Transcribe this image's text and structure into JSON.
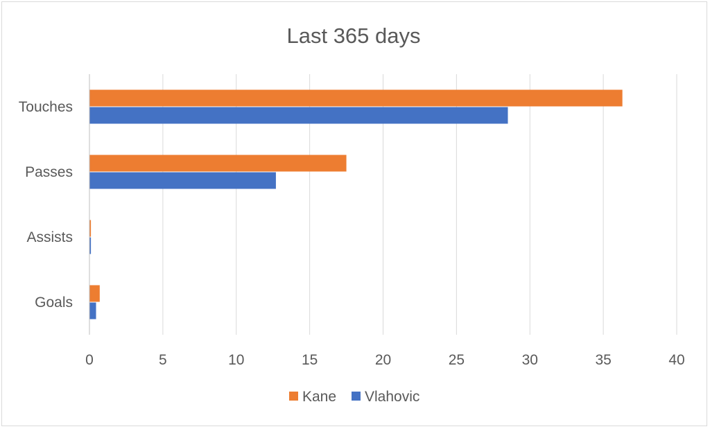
{
  "chart_data": {
    "type": "bar",
    "orientation": "horizontal",
    "title": "Last 365 days",
    "categories": [
      "Goals",
      "Assists",
      "Passes",
      "Touches"
    ],
    "series": [
      {
        "name": "Kane",
        "color": "#ED7D31",
        "values": [
          0.7,
          0.1,
          17.5,
          36.3
        ]
      },
      {
        "name": "Vlahovic",
        "color": "#4472C4",
        "values": [
          0.45,
          0.1,
          12.7,
          28.5
        ]
      }
    ],
    "x_ticks": [
      "0",
      "5",
      "10",
      "15",
      "20",
      "25",
      "30",
      "35",
      "40"
    ],
    "xlim": [
      0,
      40
    ],
    "xlabel": "",
    "ylabel": "",
    "grid": "vertical",
    "legend_position": "bottom",
    "colors": {
      "gridline": "#D9D9D9",
      "axis_line": "#BFBFBF",
      "text": "#595959"
    }
  }
}
